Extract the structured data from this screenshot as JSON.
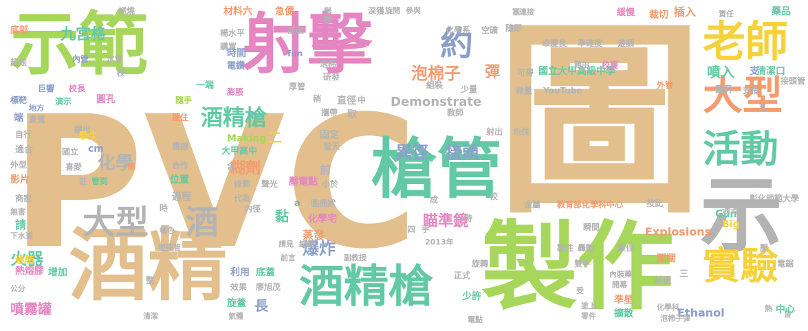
{
  "colors": {
    "tan": "#e2bf8c",
    "green": "#a6d65a",
    "pink": "#e586c2",
    "teal": "#63c9a5",
    "gold": "#f5d23c",
    "orange": "#f59b6e",
    "slate": "#8c9fcb",
    "grey": "#b3b3b3"
  },
  "words": [
    {
      "text": "PVC",
      "color": "tan"
    },
    {
      "text": "圖",
      "color": "tan"
    },
    {
      "text": "示",
      "color": "grey"
    },
    {
      "text": "製作",
      "color": "green"
    },
    {
      "text": "示範",
      "color": "green"
    },
    {
      "text": "射擊",
      "color": "pink"
    },
    {
      "text": "酒精",
      "color": "tan"
    },
    {
      "text": "槍管",
      "color": "teal"
    },
    {
      "text": "酒精槍",
      "color": "teal"
    },
    {
      "text": "老師",
      "color": "gold"
    },
    {
      "text": "大型",
      "color": "orange"
    },
    {
      "text": "活動",
      "color": "teal"
    },
    {
      "text": "實驗",
      "color": "gold"
    },
    {
      "text": "大型",
      "color": "grey"
    },
    {
      "text": "酒",
      "color": "grey"
    },
    {
      "text": "約",
      "color": "slate"
    },
    {
      "text": "酒精槍",
      "color": "teal"
    },
    {
      "text": "九宮格",
      "color": "teal"
    },
    {
      "text": "泡棉子",
      "color": "orange"
    },
    {
      "text": "彈",
      "color": "orange"
    },
    {
      "text": "國立大甲高級中學",
      "color": "teal"
    },
    {
      "text": "異徑",
      "color": "slate"
    },
    {
      "text": "接頭",
      "color": "slate"
    },
    {
      "text": "噴入",
      "color": "teal"
    },
    {
      "text": "支",
      "color": "slate"
    },
    {
      "text": "清潔口",
      "color": "teal"
    },
    {
      "text": "火器",
      "color": "teal"
    },
    {
      "text": "噴霧罐",
      "color": "pink"
    },
    {
      "text": "化學",
      "color": "grey"
    },
    {
      "text": "糊劑",
      "color": "orange"
    },
    {
      "text": "爆炸",
      "color": "slate"
    },
    {
      "text": "黏",
      "color": "teal"
    },
    {
      "text": "瞄準鏡",
      "color": "pink"
    },
    {
      "text": "Demonstrate",
      "color": "grey"
    },
    {
      "text": "Explosions",
      "color": "orange"
    },
    {
      "text": "Ethanol",
      "color": "slate"
    },
    {
      "text": "Making",
      "color": "green"
    },
    {
      "text": "Gun",
      "color": "teal"
    },
    {
      "text": "Big",
      "color": "gold"
    },
    {
      "text": "材料六",
      "color": "orange"
    },
    {
      "text": "急便",
      "color": "orange"
    },
    {
      "text": "舉辦",
      "color": "grey"
    },
    {
      "text": "深獲",
      "color": "grey"
    },
    {
      "text": "旋開",
      "color": "grey"
    },
    {
      "text": "參與",
      "color": "grey"
    },
    {
      "text": "塞",
      "color": "grey"
    },
    {
      "text": "連接",
      "color": "grey"
    },
    {
      "text": "緩慢",
      "color": "pink"
    },
    {
      "text": "裁切",
      "color": "orange"
    },
    {
      "text": "插入",
      "color": "orange"
    },
    {
      "text": "責任",
      "color": "grey"
    },
    {
      "text": "藥品",
      "color": "teal"
    },
    {
      "text": "底部",
      "color": "orange"
    },
    {
      "text": "燃燒",
      "color": "grey"
    },
    {
      "text": "楊水平",
      "color": "grey"
    },
    {
      "text": "購買",
      "color": "grey"
    },
    {
      "text": "前端",
      "color": "grey"
    },
    {
      "text": "化學系",
      "color": "grey"
    },
    {
      "text": "空礦",
      "color": "grey"
    },
    {
      "text": "隨即",
      "color": "grey"
    },
    {
      "text": "卓慶良",
      "color": "grey"
    },
    {
      "text": "準確度",
      "color": "grey"
    },
    {
      "text": "遊戲",
      "color": "grey"
    },
    {
      "text": "時間",
      "color": "slate"
    },
    {
      "text": "電鑽",
      "color": "slate"
    },
    {
      "text": "fun",
      "color": "slate"
    },
    {
      "text": "泡棉",
      "color": "grey"
    },
    {
      "text": "研發",
      "color": "grey"
    },
    {
      "text": "藉由",
      "color": "grey"
    },
    {
      "text": "校慶",
      "color": "pink"
    },
    {
      "text": "內管",
      "color": "slate"
    },
    {
      "text": "水管",
      "color": "grey"
    },
    {
      "text": "枝",
      "color": "grey"
    },
    {
      "text": "可得",
      "color": "grey"
    },
    {
      "text": "超炫",
      "color": "grey"
    },
    {
      "text": "巨響",
      "color": "slate"
    },
    {
      "text": "校長",
      "color": "pink"
    },
    {
      "text": "標靶",
      "color": "slate"
    },
    {
      "text": "地方",
      "color": "slate"
    },
    {
      "text": "演示",
      "color": "teal"
    },
    {
      "text": "一端",
      "color": "teal"
    },
    {
      "text": "膨脹",
      "color": "pink"
    },
    {
      "text": "厚管",
      "color": "grey"
    },
    {
      "text": "組裝",
      "color": "grey"
    },
    {
      "text": "少量",
      "color": "grey"
    },
    {
      "text": "微量",
      "color": "grey"
    },
    {
      "text": "YouTube",
      "color": "grey"
    },
    {
      "text": "外管",
      "color": "orange"
    },
    {
      "text": "圖洞",
      "color": "grey"
    },
    {
      "text": "支撐",
      "color": "grey"
    },
    {
      "text": "接頭管",
      "color": "grey"
    },
    {
      "text": "圓孔",
      "color": "pink"
    },
    {
      "text": "隨手",
      "color": "green"
    },
    {
      "text": "稍",
      "color": "grey"
    },
    {
      "text": "攜帶",
      "color": "grey"
    },
    {
      "text": "直徑",
      "color": "grey"
    },
    {
      "text": "教師",
      "color": "grey"
    },
    {
      "text": "五",
      "color": "grey"
    },
    {
      "text": "端",
      "color": "slate"
    },
    {
      "text": "貴賓",
      "color": "grey"
    },
    {
      "text": "握住",
      "color": "orange"
    },
    {
      "text": "取",
      "color": "grey"
    },
    {
      "text": "鑽出",
      "color": "grey"
    },
    {
      "text": "射出",
      "color": "grey"
    },
    {
      "text": "包住",
      "color": "grey"
    },
    {
      "text": "自行",
      "color": "grey"
    },
    {
      "text": "學生",
      "color": "gold"
    },
    {
      "text": "固定",
      "color": "grey"
    },
    {
      "text": "適合",
      "color": "grey"
    },
    {
      "text": "國立",
      "color": "grey"
    },
    {
      "text": "cm",
      "color": "slate"
    },
    {
      "text": "震撼",
      "color": "grey"
    },
    {
      "text": "大甲高中",
      "color": "teal"
    },
    {
      "text": "當天",
      "color": "grey"
    },
    {
      "text": "外型",
      "color": "grey"
    },
    {
      "text": "喜愛",
      "color": "grey"
    },
    {
      "text": "條",
      "color": "orange"
    },
    {
      "text": "合作",
      "color": "grey"
    },
    {
      "text": "含",
      "color": "grey"
    },
    {
      "text": "註",
      "color": "grey"
    },
    {
      "text": "管到",
      "color": "teal"
    },
    {
      "text": "位置",
      "color": "teal"
    },
    {
      "text": "修飾",
      "color": "grey"
    },
    {
      "text": "聲光",
      "color": "grey"
    },
    {
      "text": "壓電點",
      "color": "pink"
    },
    {
      "text": "影片",
      "color": "orange"
    },
    {
      "text": "小於",
      "color": "grey"
    },
    {
      "text": "引燃",
      "color": "grey"
    },
    {
      "text": "商家",
      "color": "grey"
    },
    {
      "text": "過程",
      "color": "grey"
    },
    {
      "text": "代為",
      "color": "grey"
    },
    {
      "text": "內徑",
      "color": "grey"
    },
    {
      "text": "a",
      "color": "slate"
    },
    {
      "text": "圓桶狀",
      "color": "grey"
    },
    {
      "text": "成",
      "color": "grey"
    },
    {
      "text": "校",
      "color": "grey"
    },
    {
      "text": "金屬",
      "color": "grey"
    },
    {
      "text": "教育部化學科中心",
      "color": "orange"
    },
    {
      "text": "按此",
      "color": "grey"
    },
    {
      "text": "彰化師範大學",
      "color": "grey"
    },
    {
      "text": "無害",
      "color": "grey"
    },
    {
      "text": "時",
      "color": "grey"
    },
    {
      "text": "化學宅",
      "color": "pink"
    },
    {
      "text": "持",
      "color": "grey"
    },
    {
      "text": "通道",
      "color": "grey"
    },
    {
      "text": "請",
      "color": "teal"
    },
    {
      "text": "橘色",
      "color": "grey"
    },
    {
      "text": "四",
      "color": "grey"
    },
    {
      "text": "手",
      "color": "grey"
    },
    {
      "text": "瞬間",
      "color": "grey"
    },
    {
      "text": "下水道",
      "color": "grey"
    },
    {
      "text": "塑膠管",
      "color": "grey"
    },
    {
      "text": "請見",
      "color": "grey"
    },
    {
      "text": "編輯",
      "color": "grey"
    },
    {
      "text": "2013年",
      "color": "grey"
    },
    {
      "text": "黏住",
      "color": "grey"
    },
    {
      "text": "轟動",
      "color": "grey"
    },
    {
      "text": "最佳",
      "color": "grey"
    },
    {
      "text": "壓",
      "color": "grey"
    },
    {
      "text": "前言",
      "color": "grey"
    },
    {
      "text": "副教授",
      "color": "grey"
    },
    {
      "text": "闖關",
      "color": "orange"
    },
    {
      "text": "電鋸",
      "color": "grey"
    },
    {
      "text": "連結",
      "color": "gold"
    },
    {
      "text": "熱熔膠",
      "color": "pink"
    },
    {
      "text": "增加",
      "color": "teal"
    },
    {
      "text": "利用",
      "color": "slate"
    },
    {
      "text": "底蓋",
      "color": "teal"
    },
    {
      "text": "旋轉",
      "color": "grey"
    },
    {
      "text": "雙手",
      "color": "grey"
    },
    {
      "text": "正式",
      "color": "grey"
    },
    {
      "text": "三",
      "color": "grey"
    },
    {
      "text": "計價",
      "color": "grey"
    },
    {
      "text": "內裝藥",
      "color": "grey"
    },
    {
      "text": "開幕",
      "color": "grey"
    },
    {
      "text": "公分",
      "color": "grey"
    },
    {
      "text": "整",
      "color": "grey"
    },
    {
      "text": "效果",
      "color": "grey"
    },
    {
      "text": "廖旭茂",
      "color": "grey"
    },
    {
      "text": "少許",
      "color": "teal"
    },
    {
      "text": "受",
      "color": "grey"
    },
    {
      "text": "準星",
      "color": "orange"
    },
    {
      "text": "化學科",
      "color": "grey"
    },
    {
      "text": "旋蓋",
      "color": "teal"
    },
    {
      "text": "氣體",
      "color": "grey"
    },
    {
      "text": "清潔",
      "color": "grey"
    },
    {
      "text": "擴散",
      "color": "teal"
    },
    {
      "text": "塗上",
      "color": "grey"
    },
    {
      "text": "零件",
      "color": "grey"
    },
    {
      "text": "泡棉子彈",
      "color": "grey"
    },
    {
      "text": "皆",
      "color": "grey"
    },
    {
      "text": "熱",
      "color": "grey"
    },
    {
      "text": "中心",
      "color": "teal"
    },
    {
      "text": "電點",
      "color": "grey"
    },
    {
      "text": "蒸發",
      "color": "orange"
    },
    {
      "text": "前",
      "color": "grey"
    },
    {
      "text": "長",
      "color": "slate"
    },
    {
      "text": "二",
      "color": "gold"
    },
    {
      "text": "中",
      "color": "grey"
    }
  ]
}
